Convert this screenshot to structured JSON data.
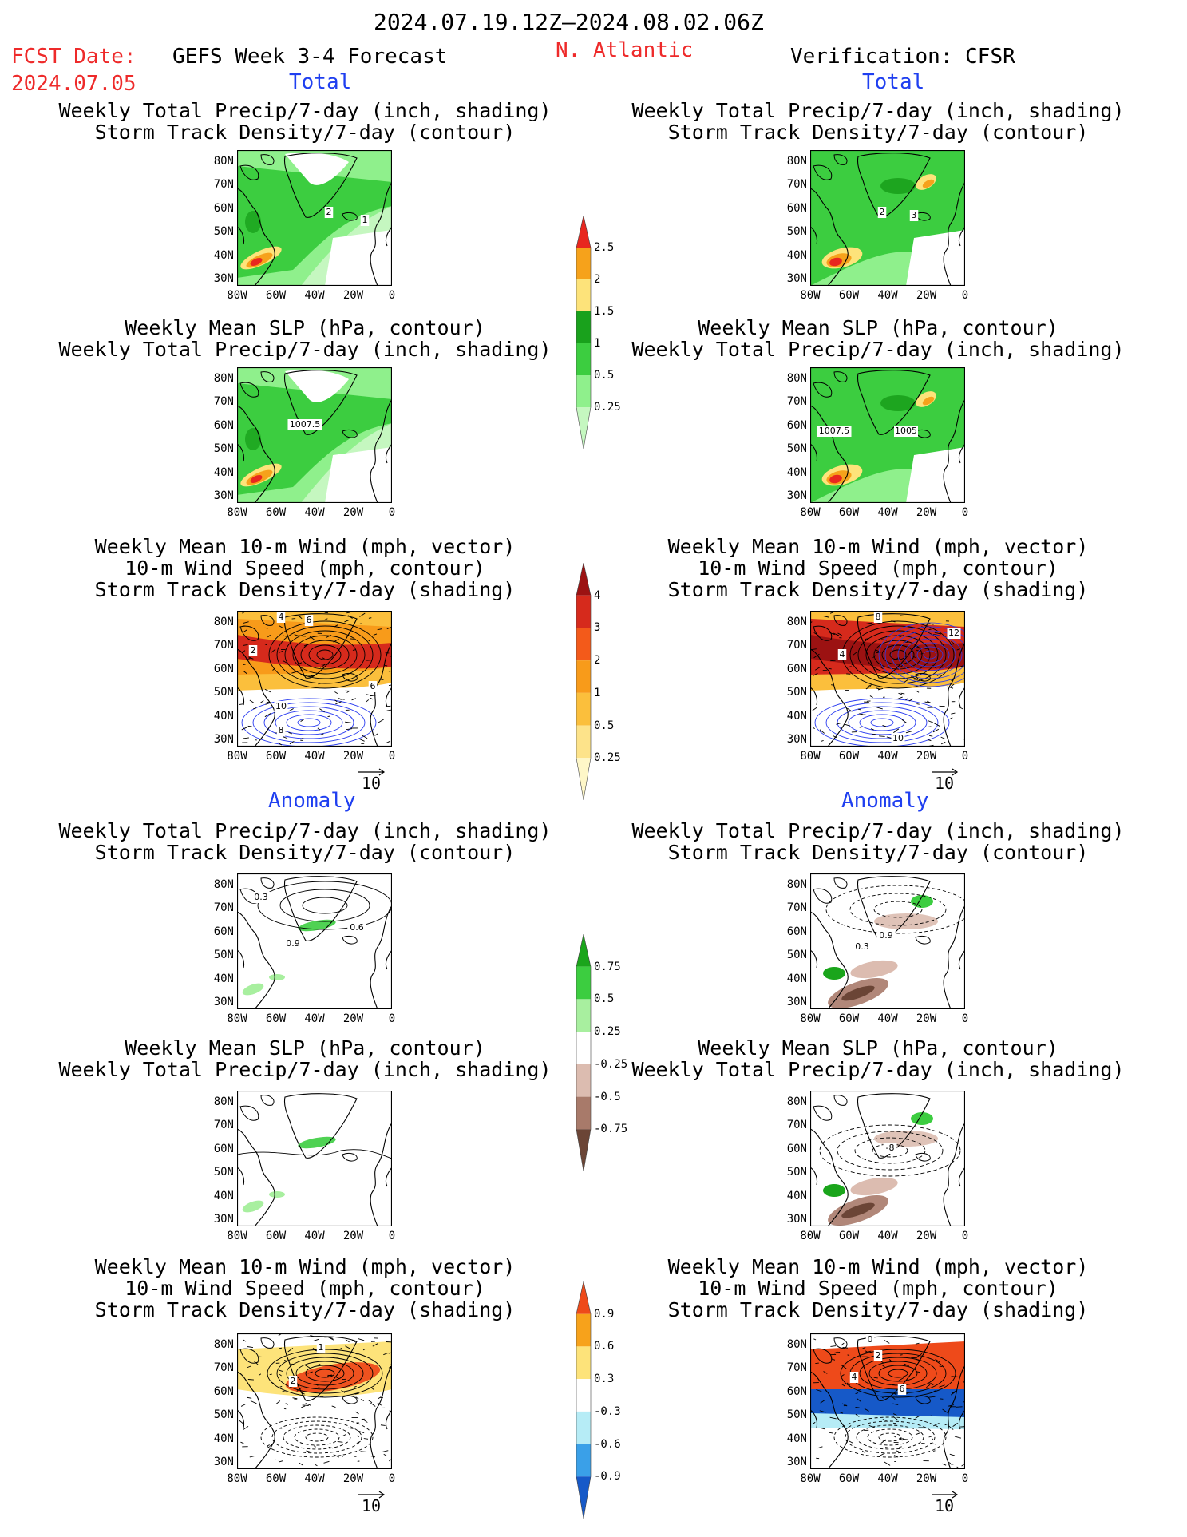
{
  "header": {
    "period": "2024.07.19.12Z–2024.08.02.06Z",
    "fcst_label": "FCST Date:",
    "fcst_date": "2024.07.05",
    "forecast_name": "GEFS Week 3-4 Forecast",
    "region": "N. Atlantic",
    "verification": "Verification: CFSR"
  },
  "sections": {
    "total": "Total",
    "anomaly": "Anomaly"
  },
  "titles": {
    "precip_track": [
      "Weekly Total Precip/7-day (inch, shading)",
      "Storm Track Density/7-day (contour)"
    ],
    "slp_precip": [
      "Weekly Mean SLP (hPa, contour)",
      "Weekly Total Precip/7-day (inch, shading)"
    ],
    "wind_track": [
      "Weekly Mean 10-m Wind (mph, vector)",
      "10-m Wind Speed (mph, contour)",
      "Storm Track Density/7-day (shading)"
    ]
  },
  "axes": {
    "lat_ticks": [
      "80N",
      "70N",
      "60N",
      "50N",
      "40N",
      "30N"
    ],
    "lon_ticks": [
      "80W",
      "60W",
      "40W",
      "20W",
      "0"
    ]
  },
  "vector_ref": "10",
  "colorbars": {
    "precip_total": {
      "labels": [
        "2.5",
        "2",
        "1.5",
        "1",
        "0.5",
        "0.25"
      ],
      "colors": [
        "#e8271f",
        "#f6a21b",
        "#fde37a",
        "#19a11c",
        "#3ccd40",
        "#8ff08c",
        "#c5f7c0"
      ]
    },
    "track_total": {
      "labels": [
        "4",
        "3",
        "2",
        "1",
        "0.5",
        "0.25"
      ],
      "colors": [
        "#9c1212",
        "#d62a1c",
        "#f35a1a",
        "#f89b1a",
        "#fbbf3c",
        "#fde38a",
        "#fef7c8"
      ]
    },
    "precip_anom": {
      "labels": [
        "0.75",
        "0.5",
        "0.25",
        "-0.25",
        "-0.5",
        "-0.75"
      ],
      "colors": [
        "#1aa51b",
        "#3ccd40",
        "#a8ef9f",
        "#ffffff",
        "#dcbcb0",
        "#a87a6a",
        "#6b4536"
      ]
    },
    "track_anom": {
      "labels": [
        "0.9",
        "0.6",
        "0.3",
        "-0.3",
        "-0.6",
        "-0.9"
      ],
      "colors": [
        "#ee4a1a",
        "#f7a21b",
        "#fde37a",
        "#ffffff",
        "#b6ecf6",
        "#3aa0e8",
        "#1659c8"
      ]
    }
  },
  "contour_labels": {
    "p1": [
      "2",
      "1"
    ],
    "p2": [
      "2",
      "3"
    ],
    "p3": [
      "1007.5"
    ],
    "p4": [
      "1007.5",
      "1005"
    ],
    "p5": [
      "4",
      "6",
      "2",
      "10",
      "6",
      "8"
    ],
    "p6": [
      "8",
      "4",
      "12",
      "10"
    ],
    "p7": [
      "0.3",
      "0.6",
      "0.9"
    ],
    "p8": [
      "0.9",
      "0.3"
    ],
    "p10": [
      "-8"
    ],
    "p11": [
      "1",
      "2"
    ],
    "p12": [
      "0",
      "2",
      "4",
      "6"
    ]
  }
}
